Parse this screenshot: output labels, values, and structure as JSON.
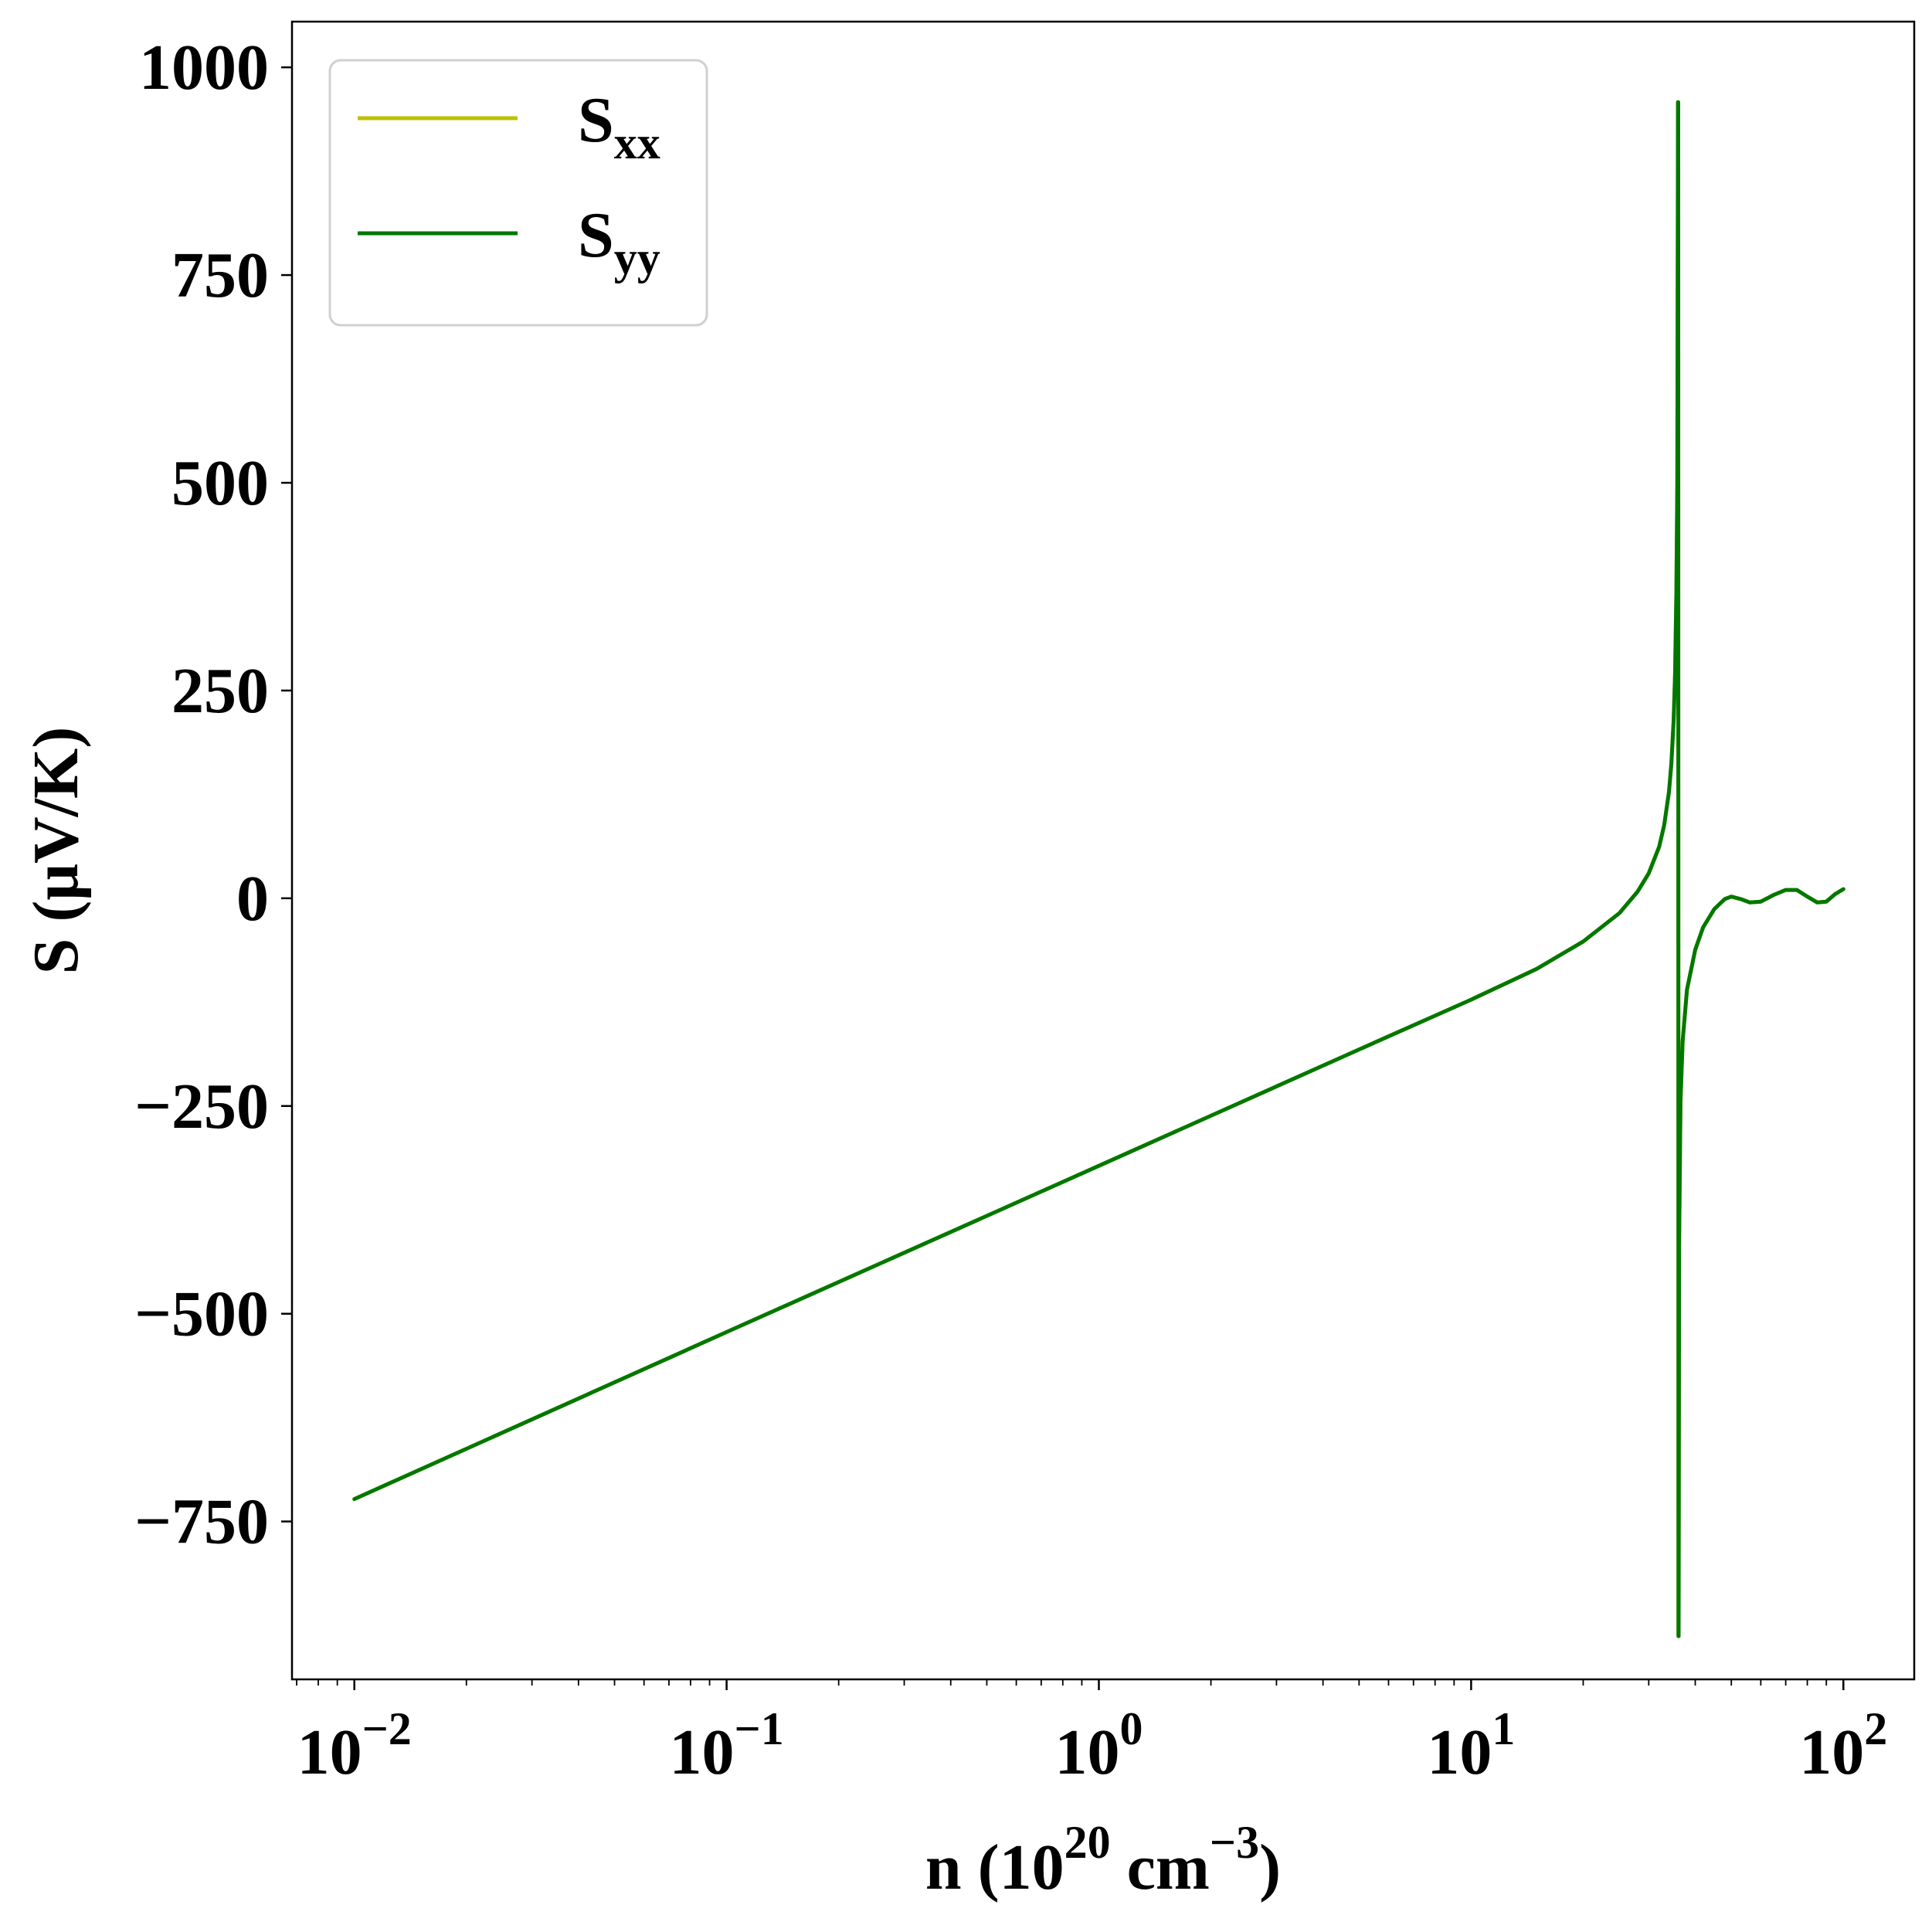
{
  "chart_data": {
    "type": "line",
    "title": "",
    "xlabel": {
      "base": "n (10",
      "sup1": "20",
      "mid": " cm",
      "sup2": "−3",
      "end": ")"
    },
    "ylabel": "S (μV/K)",
    "xscale": "log",
    "xlim": [
      0.0068,
      155
    ],
    "ylim": [
      -940,
      1055
    ],
    "grid": false,
    "legend_placement": "top-left",
    "y_ticks": [
      {
        "value": -750,
        "label": "−750"
      },
      {
        "value": -500,
        "label": "−500"
      },
      {
        "value": -250,
        "label": "−250"
      },
      {
        "value": 0,
        "label": "0"
      },
      {
        "value": 250,
        "label": "250"
      },
      {
        "value": 500,
        "label": "500"
      },
      {
        "value": 750,
        "label": "750"
      },
      {
        "value": 1000,
        "label": "1000"
      }
    ],
    "x_ticks": [
      {
        "value": 0.01,
        "base": "10",
        "exp": "−2"
      },
      {
        "value": 0.1,
        "base": "10",
        "exp": "−1"
      },
      {
        "value": 1,
        "base": "10",
        "exp": "0"
      },
      {
        "value": 10,
        "base": "10",
        "exp": "1"
      },
      {
        "value": 100,
        "base": "10",
        "exp": "2"
      }
    ],
    "series": [
      {
        "name": "S_xx",
        "label_main": "S",
        "label_sub": "xx",
        "color": "#bfbf00",
        "x": [
          0.01,
          0.1,
          1,
          5,
          10,
          15,
          20,
          25,
          28,
          30,
          32,
          33,
          34,
          34.5,
          35,
          35.3,
          35.6,
          35.8,
          35.95,
          36.0,
          36.05,
          36.1,
          36.2,
          36.5,
          37,
          38,
          40,
          42,
          45,
          48,
          50,
          53,
          56,
          60,
          65,
          70,
          75,
          80,
          85,
          90,
          95,
          100
        ],
        "y": [
          -723,
          -522,
          -322,
          -182,
          -122,
          -85,
          -52,
          -18,
          8,
          30,
          62,
          88,
          128,
          162,
          215,
          270,
          370,
          500,
          958,
          958,
          -888,
          -888,
          -420,
          -245,
          -172,
          -110,
          -62,
          -35,
          -13,
          -1,
          2,
          -1,
          -5,
          -4,
          4,
          10,
          10,
          2,
          -5,
          -4,
          5,
          11
        ]
      },
      {
        "name": "S_yy",
        "label_main": "S",
        "label_sub": "yy",
        "color": "#007800",
        "x": [
          0.01,
          0.1,
          1,
          5,
          10,
          15,
          20,
          25,
          28,
          30,
          32,
          33,
          34,
          34.5,
          35,
          35.3,
          35.6,
          35.8,
          35.95,
          36.0,
          36.05,
          36.1,
          36.2,
          36.5,
          37,
          38,
          40,
          42,
          45,
          48,
          50,
          53,
          56,
          60,
          65,
          70,
          75,
          80,
          85,
          90,
          95,
          100
        ],
        "y": [
          -723,
          -522,
          -322,
          -182,
          -122,
          -85,
          -52,
          -18,
          8,
          30,
          62,
          88,
          128,
          162,
          215,
          270,
          370,
          500,
          958,
          958,
          -888,
          -888,
          -420,
          -245,
          -172,
          -110,
          -62,
          -35,
          -13,
          -1,
          2,
          -1,
          -5,
          -4,
          4,
          10,
          10,
          2,
          -5,
          -4,
          5,
          11
        ]
      }
    ]
  }
}
